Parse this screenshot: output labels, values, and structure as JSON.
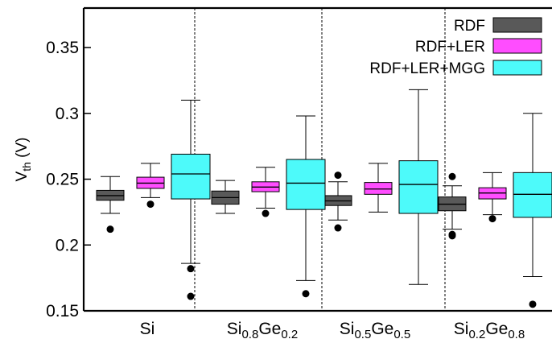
{
  "chart_data": {
    "type": "box",
    "title": "",
    "xlabel": "",
    "ylabel": {
      "main": "V",
      "sub": "th",
      "unit": " (V)"
    },
    "ylim": [
      0.15,
      0.38
    ],
    "yticks": [
      "0.15",
      "0.2",
      "0.25",
      "0.3",
      "0.35"
    ],
    "grid": false,
    "legend_placement": "top-right",
    "categories": [
      {
        "parts": [
          {
            "t": "Si"
          }
        ]
      },
      {
        "parts": [
          {
            "t": "Si"
          },
          {
            "t": "0.8",
            "sub": true
          },
          {
            "t": "Ge"
          },
          {
            "t": "0.2",
            "sub": true
          }
        ]
      },
      {
        "parts": [
          {
            "t": "Si"
          },
          {
            "t": "0.5",
            "sub": true
          },
          {
            "t": "Ge"
          },
          {
            "t": "0.5",
            "sub": true
          }
        ]
      },
      {
        "parts": [
          {
            "t": "Si"
          },
          {
            "t": "0.2",
            "sub": true
          },
          {
            "t": "Ge"
          },
          {
            "t": "0.8",
            "sub": true
          }
        ]
      }
    ],
    "series": [
      {
        "name": "RDF",
        "color": "#595959",
        "boxes": [
          {
            "whislo": 0.224,
            "q1": 0.234,
            "med": 0.2375,
            "q3": 0.2415,
            "whishi": 0.252,
            "fliers": [
              0.212
            ]
          },
          {
            "whislo": 0.224,
            "q1": 0.231,
            "med": 0.236,
            "q3": 0.241,
            "whishi": 0.249,
            "fliers": []
          },
          {
            "whislo": 0.219,
            "q1": 0.23,
            "med": 0.2335,
            "q3": 0.2375,
            "whishi": 0.248,
            "fliers": [
              0.253,
              0.213
            ]
          },
          {
            "whislo": 0.212,
            "q1": 0.226,
            "med": 0.231,
            "q3": 0.2365,
            "whishi": 0.245,
            "fliers": [
              0.252,
              0.208,
              0.207
            ]
          }
        ]
      },
      {
        "name": "RDF+LER",
        "color": "#ff4dff",
        "boxes": [
          {
            "whislo": 0.236,
            "q1": 0.243,
            "med": 0.247,
            "q3": 0.2515,
            "whishi": 0.262,
            "fliers": [
              0.231
            ]
          },
          {
            "whislo": 0.228,
            "q1": 0.2405,
            "med": 0.244,
            "q3": 0.248,
            "whishi": 0.259,
            "fliers": [
              0.224
            ]
          },
          {
            "whislo": 0.225,
            "q1": 0.2385,
            "med": 0.2425,
            "q3": 0.2475,
            "whishi": 0.262,
            "fliers": []
          },
          {
            "whislo": 0.223,
            "q1": 0.235,
            "med": 0.2395,
            "q3": 0.2435,
            "whishi": 0.255,
            "fliers": [
              0.22
            ]
          }
        ]
      },
      {
        "name": "RDF+LER+MGG",
        "color": "#4dfafa",
        "boxes": [
          {
            "whislo": 0.186,
            "q1": 0.235,
            "med": 0.254,
            "q3": 0.269,
            "whishi": 0.31,
            "fliers": [
              0.182,
              0.161
            ]
          },
          {
            "whislo": 0.173,
            "q1": 0.227,
            "med": 0.247,
            "q3": 0.265,
            "whishi": 0.298,
            "fliers": [
              0.163
            ]
          },
          {
            "whislo": 0.17,
            "q1": 0.224,
            "med": 0.246,
            "q3": 0.264,
            "whishi": 0.318,
            "fliers": []
          },
          {
            "whislo": 0.176,
            "q1": 0.221,
            "med": 0.2385,
            "q3": 0.255,
            "whishi": 0.3,
            "fliers": [
              0.155
            ]
          }
        ]
      }
    ]
  }
}
